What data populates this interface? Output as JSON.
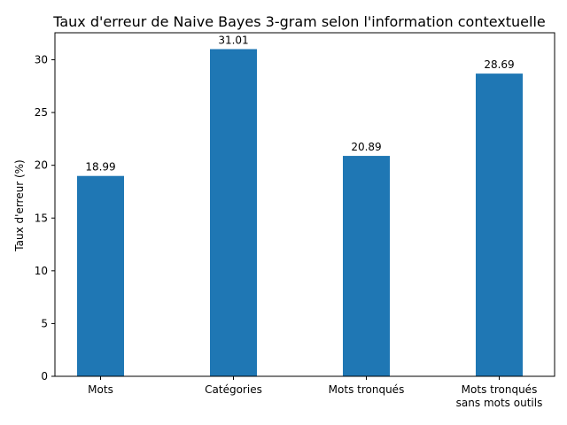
{
  "chart_data": {
    "type": "bar",
    "title": "Taux d'erreur de Naive Bayes 3-gram selon l'information contextuelle",
    "xlabel": "",
    "ylabel": "Taux d'erreur (%)",
    "categories": [
      "Mots",
      "Catégories",
      "Mots tronqués",
      "Mots tronqués\nsans mots outils"
    ],
    "values": [
      18.99,
      31.01,
      20.89,
      28.69
    ],
    "data_labels": [
      "18.99",
      "31.01",
      "20.89",
      "28.69"
    ],
    "ylim": [
      0,
      32.56
    ],
    "yticks": [
      0,
      5,
      10,
      15,
      20,
      25,
      30
    ],
    "grid": false,
    "bar_color": "#1f77b4"
  }
}
